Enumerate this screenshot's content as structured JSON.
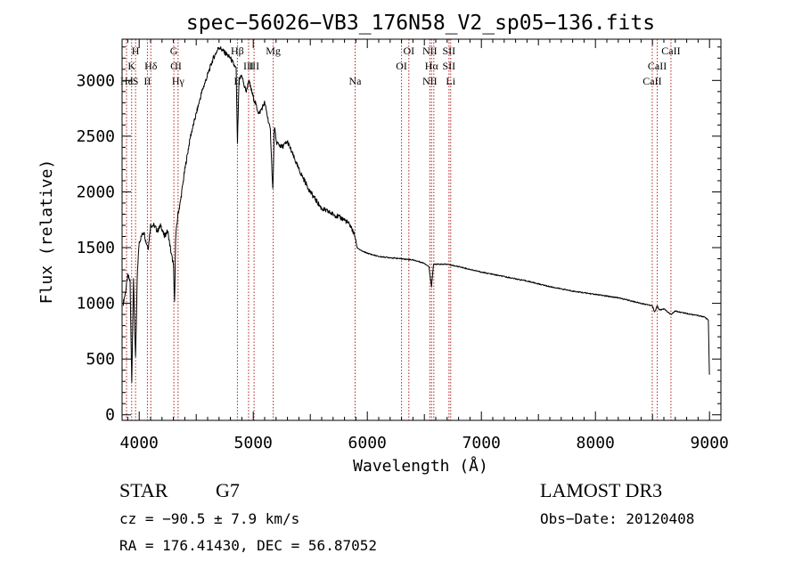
{
  "chart_data": {
    "type": "line",
    "title": "spec−56026−VB3_176N58_V2_sp05−136.fits",
    "xlabel": "Wavelength (Å)",
    "ylabel": "Flux (relative)",
    "xlim": [
      3850,
      9100
    ],
    "ylim": [
      -50,
      3370
    ],
    "xticks": [
      4000,
      5000,
      6000,
      7000,
      8000,
      9000
    ],
    "yticks": [
      0,
      500,
      1000,
      1500,
      2000,
      2500,
      3000
    ],
    "series": [
      {
        "name": "spectrum",
        "x": [
          3860,
          3880,
          3900,
          3920,
          3935,
          3950,
          3968,
          3985,
          4000,
          4020,
          4040,
          4060,
          4080,
          4100,
          4130,
          4160,
          4190,
          4220,
          4250,
          4280,
          4300,
          4310,
          4320,
          4340,
          4360,
          4400,
          4450,
          4500,
          4550,
          4600,
          4650,
          4700,
          4750,
          4800,
          4850,
          4861,
          4875,
          4900,
          4920,
          4940,
          4960,
          5000,
          5050,
          5100,
          5150,
          5172,
          5185,
          5200,
          5250,
          5300,
          5400,
          5500,
          5600,
          5700,
          5800,
          5850,
          5893,
          5910,
          5950,
          6000,
          6100,
          6200,
          6300,
          6400,
          6500,
          6540,
          6563,
          6580,
          6700,
          6800,
          7000,
          7200,
          7400,
          7600,
          7800,
          8000,
          8200,
          8400,
          8498,
          8520,
          8542,
          8560,
          8600,
          8662,
          8700,
          8800,
          8950,
          8990,
          9000
        ],
        "values": [
          1000,
          1100,
          1250,
          1200,
          300,
          1200,
          500,
          1300,
          1550,
          1600,
          1650,
          1550,
          1500,
          1700,
          1700,
          1650,
          1700,
          1600,
          1650,
          1450,
          1350,
          1000,
          1600,
          1800,
          1900,
          2200,
          2500,
          2700,
          2900,
          3050,
          3200,
          3300,
          3250,
          3200,
          3100,
          2400,
          3000,
          3050,
          2950,
          2900,
          3000,
          2850,
          2700,
          2800,
          2550,
          2000,
          2600,
          2450,
          2400,
          2450,
          2200,
          2000,
          1850,
          1800,
          1750,
          1700,
          1600,
          1500,
          1470,
          1450,
          1420,
          1410,
          1400,
          1390,
          1360,
          1330,
          1150,
          1350,
          1350,
          1330,
          1280,
          1240,
          1200,
          1150,
          1110,
          1080,
          1050,
          1000,
          980,
          920,
          980,
          940,
          950,
          900,
          930,
          910,
          880,
          850,
          300
        ]
      }
    ],
    "lines": [
      {
        "x": 3889,
        "labels": [
          {
            "row": 2,
            "text": "He"
          }
        ]
      },
      {
        "x": 3934,
        "labels": [
          {
            "row": 1,
            "text": "K"
          },
          {
            "row": 2,
            "text": "I"
          }
        ]
      },
      {
        "x": 3968,
        "labels": [
          {
            "row": 0,
            "text": "H"
          },
          {
            "row": 2,
            "text": "S"
          }
        ]
      },
      {
        "x": 4072,
        "labels": [
          {
            "row": 2,
            "text": "II"
          }
        ]
      },
      {
        "x": 4102,
        "labels": [
          {
            "row": 1,
            "text": "Hδ"
          }
        ]
      },
      {
        "x": 4304,
        "labels": [
          {
            "row": 0,
            "text": "G"
          },
          {
            "row": 1,
            "text": "C"
          }
        ]
      },
      {
        "x": 4341,
        "labels": [
          {
            "row": 1,
            "text": "II"
          },
          {
            "row": 2,
            "text": "Hγ"
          }
        ]
      },
      {
        "x": 4861,
        "labels": [
          {
            "row": 0,
            "text": "Hβ"
          },
          {
            "row": 2,
            "text": "II"
          }
        ]
      },
      {
        "x": 4959,
        "labels": [
          {
            "row": 1,
            "text": "III"
          }
        ]
      },
      {
        "x": 5007,
        "labels": [
          {
            "row": 1,
            "text": "III"
          }
        ]
      },
      {
        "x": 5175,
        "labels": [
          {
            "row": 0,
            "text": "Mg"
          }
        ]
      },
      {
        "x": 5893,
        "labels": [
          {
            "row": 2,
            "text": "Na"
          }
        ]
      },
      {
        "x": 6300,
        "labels": [
          {
            "row": 1,
            "text": "OI"
          }
        ]
      },
      {
        "x": 6364,
        "labels": [
          {
            "row": 0,
            "text": "OI"
          }
        ]
      },
      {
        "x": 6548,
        "labels": [
          {
            "row": 0,
            "text": "NII"
          },
          {
            "row": 2,
            "text": "NII"
          }
        ]
      },
      {
        "x": 6563,
        "labels": [
          {
            "row": 1,
            "text": "Hα"
          }
        ]
      },
      {
        "x": 6583,
        "labels": []
      },
      {
        "x": 6716,
        "labels": [
          {
            "row": 0,
            "text": "SII"
          },
          {
            "row": 1,
            "text": "SII"
          }
        ]
      },
      {
        "x": 6731,
        "labels": [
          {
            "row": 2,
            "text": "Li"
          }
        ]
      },
      {
        "x": 8498,
        "labels": [
          {
            "row": 2,
            "text": "CaII"
          }
        ]
      },
      {
        "x": 8542,
        "labels": [
          {
            "row": 1,
            "text": "CaII"
          }
        ]
      },
      {
        "x": 8662,
        "labels": [
          {
            "row": 0,
            "text": "CaII"
          }
        ]
      }
    ]
  },
  "info": {
    "object_type": "STAR",
    "subclass": "G7",
    "survey": "LAMOST DR3",
    "redshift": "cz = −90.5 ± 7.9 km/s",
    "obs_date": "Obs−Date: 20120408",
    "coords": "RA = 176.41430, DEC =  56.87052"
  },
  "colors": {
    "axis": "#000000",
    "spectrum": "#000000",
    "line_marker": "#b22222",
    "background": "#ffffff"
  }
}
